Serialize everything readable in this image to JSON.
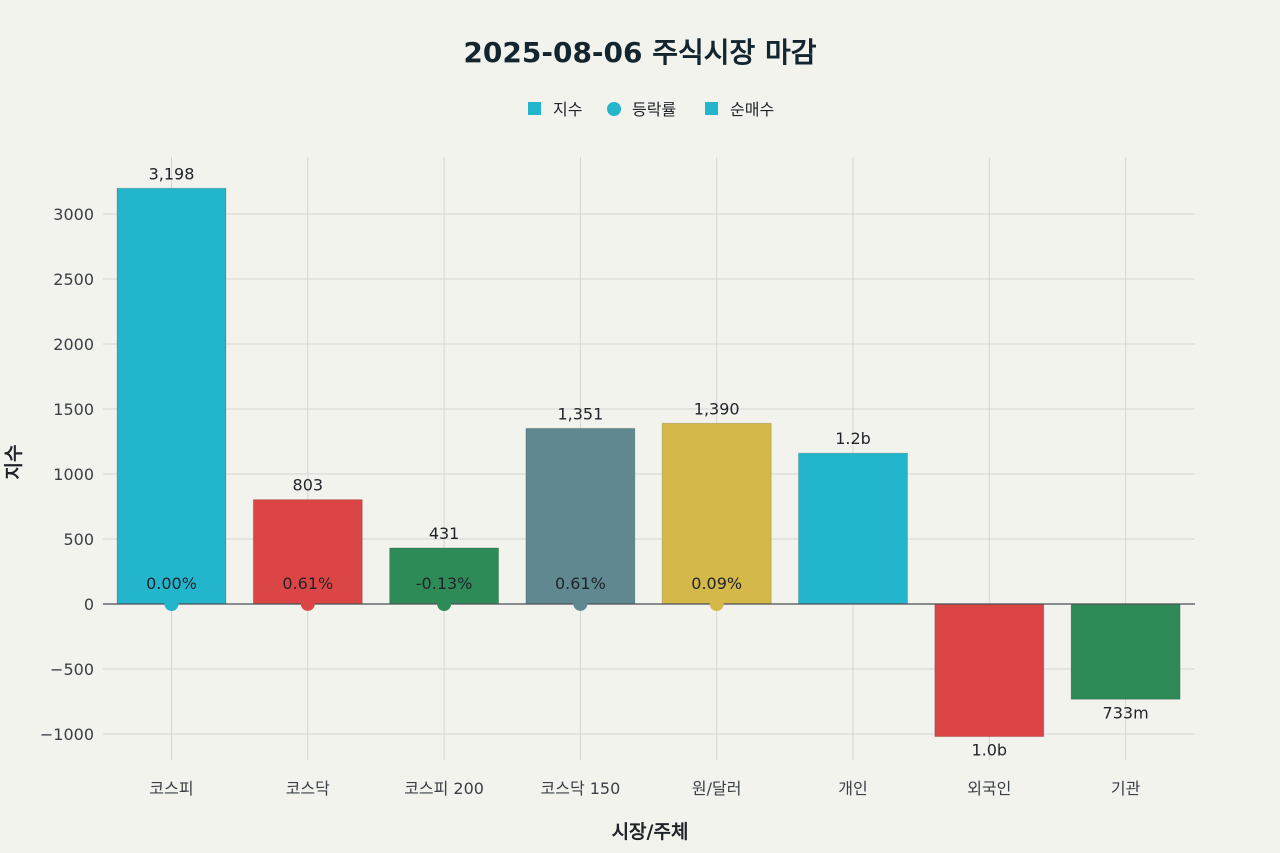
{
  "chart_data": {
    "type": "bar",
    "title": "2025-08-06 주식시장 마감",
    "xlabel": "시장/주체",
    "ylabel": "지수",
    "ylim": [
      -1200,
      3400
    ],
    "yticks": [
      -1000,
      -500,
      0,
      500,
      1000,
      1500,
      2000,
      2500,
      3000
    ],
    "ytick_labels": [
      "−1000",
      "−500",
      "0",
      "500",
      "1000",
      "1500",
      "2000",
      "2500",
      "3000"
    ],
    "grid": true,
    "legend": {
      "placement": "top-center",
      "entries": [
        {
          "name": "지수",
          "marker": "square",
          "color": "#22b5cc"
        },
        {
          "name": "등락률",
          "marker": "circle",
          "color": "#22b5cc"
        },
        {
          "name": "순매수",
          "marker": "square",
          "color": "#22b5cc"
        }
      ]
    },
    "categories": [
      "코스피",
      "코스닥",
      "코스피 200",
      "코스닥 150",
      "원/달러",
      "개인",
      "외국인",
      "기관"
    ],
    "series": [
      {
        "name": "지수",
        "values": [
          3198,
          803,
          431,
          1351,
          1390,
          null,
          null,
          null
        ],
        "labels": [
          "3,198",
          "803",
          "431",
          "1,351",
          "1,390",
          "",
          "",
          ""
        ]
      },
      {
        "name": "등락률",
        "type": "scatter",
        "values": [
          0.0,
          0.61,
          -0.13,
          0.61,
          0.09,
          null,
          null,
          null
        ],
        "labels": [
          "0.00%",
          "0.61%",
          "-0.13%",
          "0.61%",
          "0.09%",
          "",
          "",
          ""
        ]
      },
      {
        "name": "순매수",
        "values": [
          null,
          null,
          null,
          null,
          null,
          1160,
          -1020,
          -733
        ],
        "labels": [
          "",
          "",
          "",
          "",
          "",
          "1.2b",
          "1.0b",
          "733m"
        ]
      }
    ],
    "colors": [
      "#22b5cc",
      "#dc4546",
      "#2e8b57",
      "#5f8890",
      "#d4b84a",
      "#22b5cc",
      "#dc4546",
      "#2e8b57"
    ]
  }
}
